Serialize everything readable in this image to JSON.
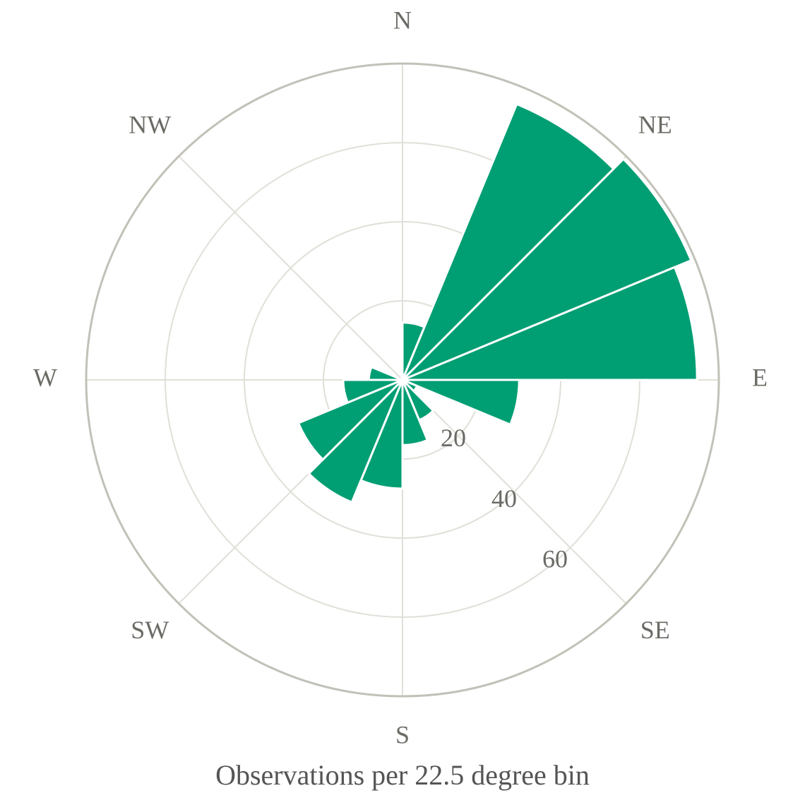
{
  "chart_data": {
    "type": "polar-bar",
    "xlabel": "Observations per 22.5 degree bin",
    "directions": [
      "N",
      "NE",
      "E",
      "SE",
      "S",
      "SW",
      "W",
      "NW"
    ],
    "values": [
      14.5,
      75.5,
      79,
      74.5,
      29.5,
      4,
      11,
      16.5,
      27.5,
      33.5,
      28.5,
      15,
      8.5,
      0,
      0,
      0
    ],
    "color": "#009e73",
    "ylim": [
      0,
      80
    ],
    "yticks": [
      20,
      40,
      60
    ],
    "grid": true
  }
}
